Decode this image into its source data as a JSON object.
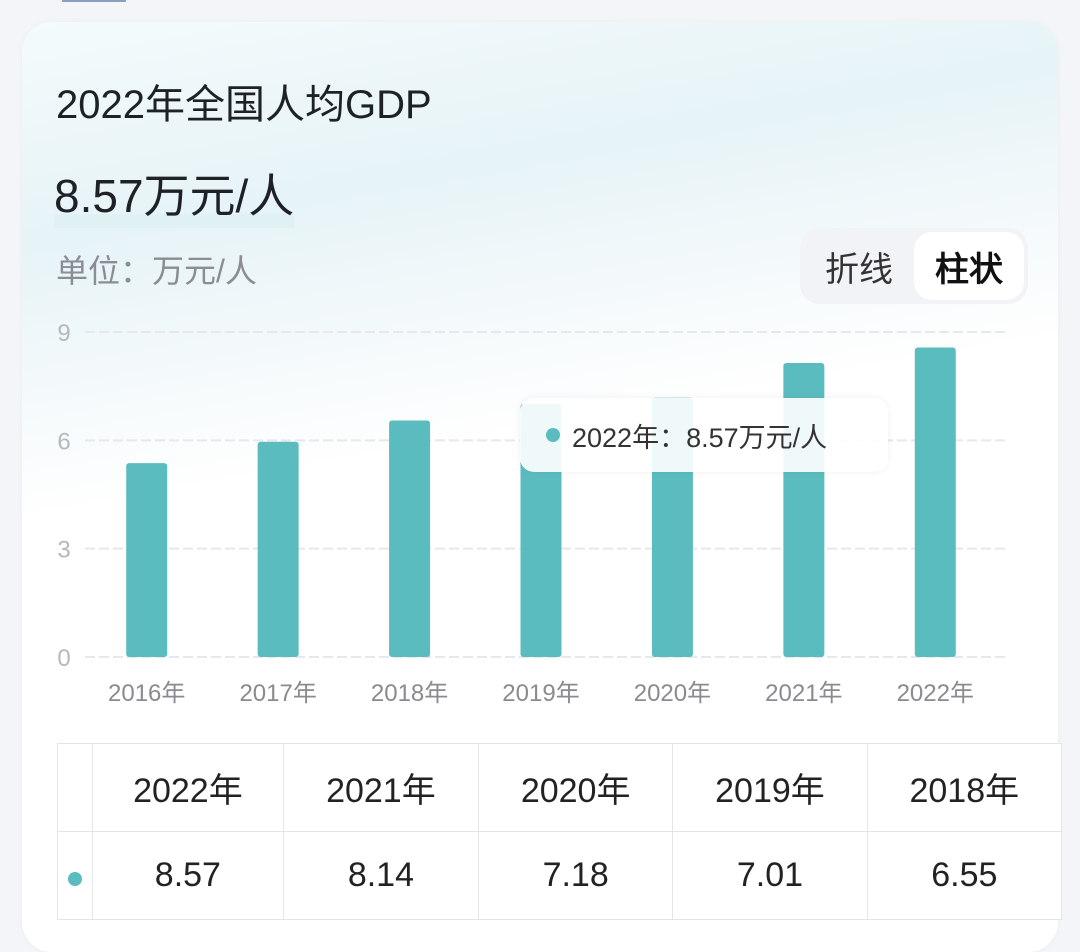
{
  "title": "2022年全国人均GDP",
  "headline_value": "8.57万元/人",
  "unit_label": "单位：万元/人",
  "toggle": {
    "options": [
      "折线",
      "柱状"
    ],
    "selected": "柱状"
  },
  "tooltip": {
    "text": "2022年：8.57万元/人"
  },
  "colors": {
    "bar": "#5bbcbf",
    "accent": "#5bbcbf"
  },
  "chart_data": {
    "type": "bar",
    "categories": [
      "2016年",
      "2017年",
      "2018年",
      "2019年",
      "2020年",
      "2021年",
      "2022年"
    ],
    "values": [
      5.37,
      5.96,
      6.55,
      7.01,
      7.18,
      8.14,
      8.57
    ],
    "ylim": [
      0,
      9
    ],
    "yticks": [
      "0",
      "3",
      "6",
      "9"
    ],
    "ytick_values": [
      0,
      3,
      6,
      9
    ],
    "grid": true,
    "xlabel": "",
    "ylabel": ""
  },
  "table": {
    "headers": [
      "2022年",
      "2021年",
      "2020年",
      "2019年",
      "2018年"
    ],
    "values": [
      "8.57",
      "8.14",
      "7.18",
      "7.01",
      "6.55"
    ]
  }
}
